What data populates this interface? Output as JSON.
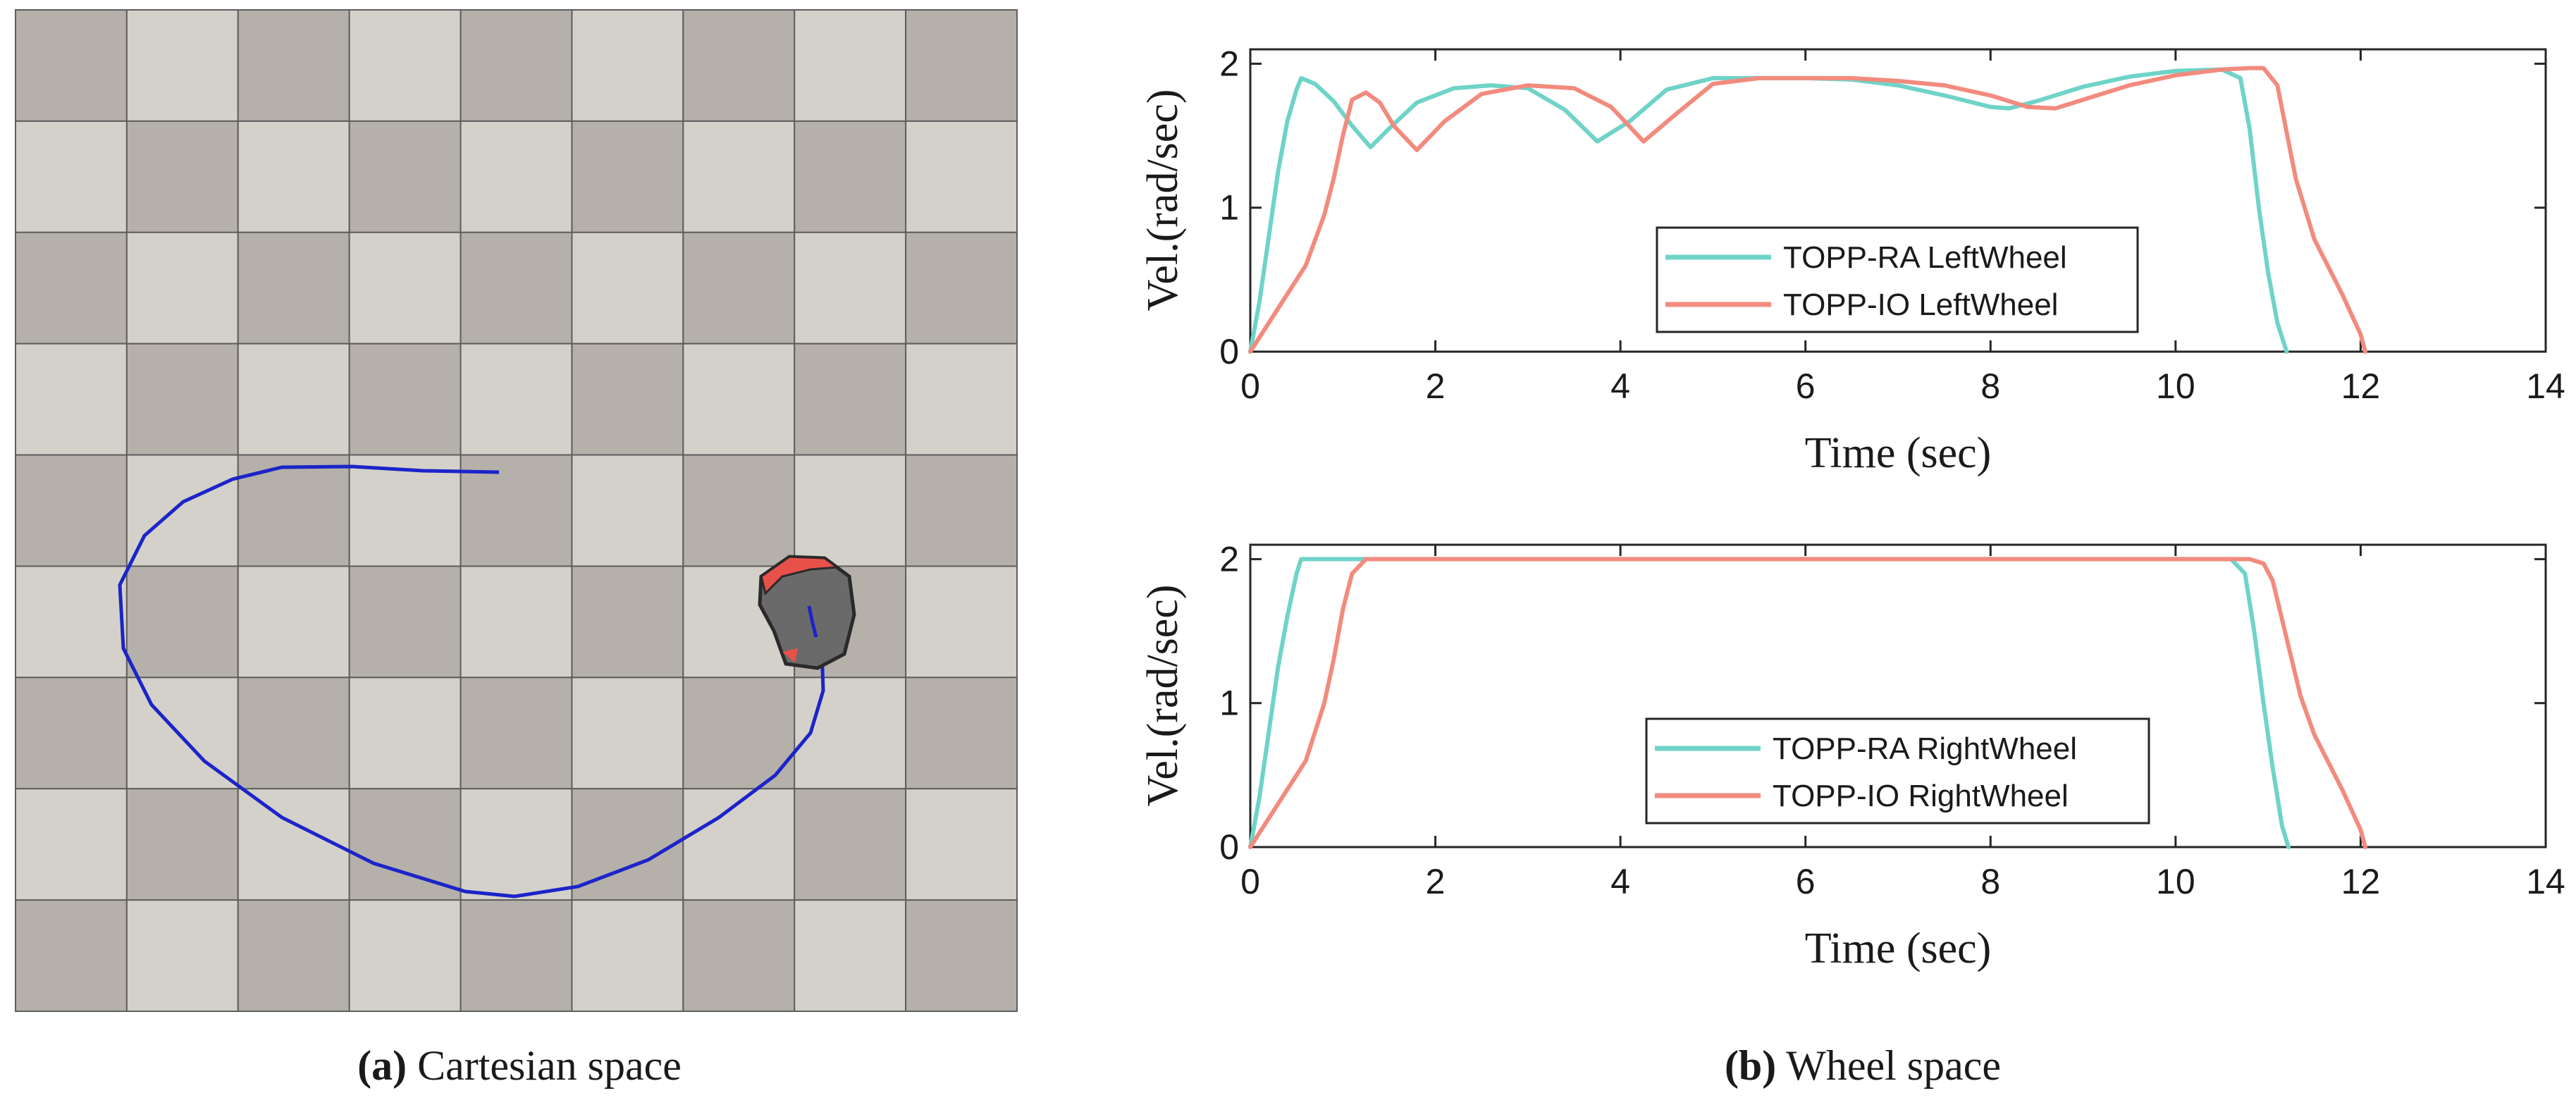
{
  "captions": {
    "a_label": "(a)",
    "a_text": " Cartesian space",
    "b_label": "(b)",
    "b_text": " Wheel space"
  },
  "colors": {
    "topp_ra": "#6fd3c8",
    "topp_io": "#f28b7e",
    "trajectory": "#1c24c9",
    "robot_body": "#6a6a6a",
    "robot_bumper": "#e8504a",
    "tile_dark": "#b5b1aa",
    "tile_light": "#d4d1ca",
    "grout": "#5e5e5e"
  },
  "scene": {
    "grid_rows": 9,
    "grid_cols": 9,
    "trajectory": [
      [
        708,
        670
      ],
      [
        600,
        668
      ],
      [
        500,
        662
      ],
      [
        400,
        663
      ],
      [
        330,
        680
      ],
      [
        260,
        712
      ],
      [
        205,
        760
      ],
      [
        170,
        830
      ],
      [
        175,
        920
      ],
      [
        215,
        1000
      ],
      [
        290,
        1080
      ],
      [
        400,
        1160
      ],
      [
        530,
        1225
      ],
      [
        660,
        1265
      ],
      [
        730,
        1272
      ],
      [
        820,
        1258
      ],
      [
        920,
        1220
      ],
      [
        1020,
        1160
      ],
      [
        1100,
        1100
      ],
      [
        1150,
        1040
      ],
      [
        1168,
        980
      ],
      [
        1166,
        920
      ],
      [
        1155,
        878
      ],
      [
        1148,
        860
      ]
    ]
  },
  "chart_data": [
    {
      "type": "line",
      "title": "",
      "xlabel": "Time (sec)",
      "ylabel": "Vel.(rad/sec)",
      "xlim": [
        0,
        14
      ],
      "ylim": [
        0,
        2.1
      ],
      "xticks": [
        "0",
        "2",
        "4",
        "6",
        "8",
        "10",
        "12",
        "14"
      ],
      "yticks": [
        "0",
        "1",
        "2"
      ],
      "grid": false,
      "legend_position": "center",
      "legend": [
        "TOPP-RA LeftWheel",
        "TOPP-IO LeftWheel"
      ],
      "series": [
        {
          "name": "TOPP-RA LeftWheel",
          "color": "#6fd3c8",
          "x": [
            0,
            0.1,
            0.2,
            0.3,
            0.4,
            0.5,
            0.55,
            0.7,
            0.9,
            1.1,
            1.3,
            1.5,
            1.8,
            2.2,
            2.6,
            3.0,
            3.4,
            3.75,
            4.1,
            4.5,
            5.0,
            5.5,
            6.0,
            6.5,
            7.0,
            7.5,
            8.0,
            8.2,
            8.5,
            9.0,
            9.5,
            10.0,
            10.5,
            10.7,
            10.8,
            10.9,
            11.0,
            11.1,
            11.2
          ],
          "y": [
            0,
            0.35,
            0.8,
            1.25,
            1.6,
            1.82,
            1.9,
            1.86,
            1.74,
            1.57,
            1.42,
            1.55,
            1.73,
            1.83,
            1.85,
            1.83,
            1.68,
            1.46,
            1.6,
            1.82,
            1.9,
            1.9,
            1.9,
            1.89,
            1.85,
            1.78,
            1.7,
            1.69,
            1.74,
            1.84,
            1.91,
            1.95,
            1.96,
            1.9,
            1.55,
            1.0,
            0.55,
            0.2,
            0
          ]
        },
        {
          "name": "TOPP-IO LeftWheel",
          "color": "#f28b7e",
          "x": [
            0,
            0.3,
            0.6,
            0.8,
            0.9,
            1.0,
            1.1,
            1.25,
            1.4,
            1.55,
            1.8,
            2.1,
            2.5,
            3.0,
            3.5,
            3.9,
            4.25,
            4.6,
            5.0,
            5.5,
            6.0,
            6.5,
            7.0,
            7.5,
            8.0,
            8.4,
            8.7,
            9.0,
            9.5,
            10.0,
            10.5,
            10.8,
            10.95,
            11.1,
            11.3,
            11.5,
            11.8,
            12.0,
            12.05
          ],
          "y": [
            0,
            0.3,
            0.6,
            0.95,
            1.2,
            1.5,
            1.75,
            1.8,
            1.73,
            1.57,
            1.4,
            1.6,
            1.79,
            1.85,
            1.83,
            1.7,
            1.46,
            1.65,
            1.86,
            1.9,
            1.9,
            1.9,
            1.88,
            1.85,
            1.78,
            1.7,
            1.69,
            1.75,
            1.85,
            1.92,
            1.96,
            1.97,
            1.97,
            1.85,
            1.2,
            0.78,
            0.4,
            0.12,
            0
          ]
        }
      ]
    },
    {
      "type": "line",
      "title": "",
      "xlabel": "Time (sec)",
      "ylabel": "Vel.(rad/sec)",
      "xlim": [
        0,
        14
      ],
      "ylim": [
        0,
        2.1
      ],
      "xticks": [
        "0",
        "2",
        "4",
        "6",
        "8",
        "10",
        "12",
        "14"
      ],
      "yticks": [
        "0",
        "1",
        "2"
      ],
      "grid": false,
      "legend_position": "center",
      "legend": [
        "TOPP-RA RightWheel",
        "TOPP-IO RightWheel"
      ],
      "series": [
        {
          "name": "TOPP-RA RightWheel",
          "color": "#6fd3c8",
          "x": [
            0,
            0.1,
            0.2,
            0.3,
            0.4,
            0.5,
            0.55,
            10.6,
            10.75,
            10.85,
            10.95,
            11.05,
            11.15,
            11.22
          ],
          "y": [
            0,
            0.35,
            0.8,
            1.25,
            1.6,
            1.9,
            2.0,
            2.0,
            1.9,
            1.5,
            1.0,
            0.55,
            0.15,
            0
          ]
        },
        {
          "name": "TOPP-IO RightWheel",
          "color": "#f28b7e",
          "x": [
            0,
            0.3,
            0.6,
            0.8,
            0.9,
            1.0,
            1.1,
            1.25,
            10.8,
            10.95,
            11.05,
            11.2,
            11.35,
            11.5,
            11.8,
            12.0,
            12.05
          ],
          "y": [
            0,
            0.3,
            0.6,
            1.0,
            1.3,
            1.65,
            1.9,
            2.0,
            2.0,
            1.97,
            1.85,
            1.45,
            1.05,
            0.78,
            0.4,
            0.12,
            0
          ]
        }
      ]
    }
  ]
}
